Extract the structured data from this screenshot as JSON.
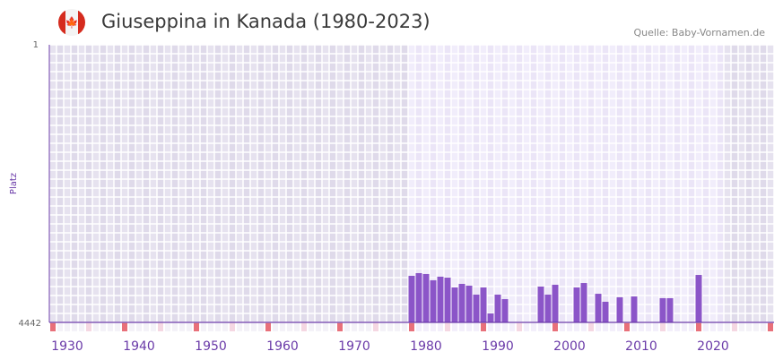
{
  "header": {
    "title": "Giuseppina in Kanada (1980-2023)",
    "source": "Quelle: Baby-Vornamen.de",
    "flag_icon": "canada-flag-icon"
  },
  "colors": {
    "bar": "#8b55c8",
    "axis": "#6a3aa8",
    "bg_dark": "#e4e0ee",
    "bg_light": "#efeaf9",
    "decade_marker": "#e8707a",
    "half_marker": "#f5d7e2"
  },
  "chart_data": {
    "type": "bar",
    "title": "Giuseppina in Kanada (1980-2023)",
    "xlabel": "",
    "ylabel": "Platz",
    "xlim": [
      1928,
      2028
    ],
    "ylim": [
      4442,
      1
    ],
    "y_ticks": [
      "1",
      "4442"
    ],
    "x_ticks": [
      1930,
      1940,
      1950,
      1960,
      1970,
      1980,
      1990,
      2000,
      2010,
      2020
    ],
    "highlight_range": [
      1978,
      2021
    ],
    "points": [
      {
        "year": 1978,
        "rank": 3697
      },
      {
        "year": 1979,
        "rank": 3654
      },
      {
        "year": 1980,
        "rank": 3668
      },
      {
        "year": 1981,
        "rank": 3769
      },
      {
        "year": 1982,
        "rank": 3711
      },
      {
        "year": 1983,
        "rank": 3726
      },
      {
        "year": 1984,
        "rank": 3883
      },
      {
        "year": 1985,
        "rank": 3826
      },
      {
        "year": 1986,
        "rank": 3855
      },
      {
        "year": 1987,
        "rank": 3998
      },
      {
        "year": 1988,
        "rank": 3883
      },
      {
        "year": 1989,
        "rank": 4299
      },
      {
        "year": 1990,
        "rank": 3998
      },
      {
        "year": 1991,
        "rank": 4070
      },
      {
        "year": 1996,
        "rank": 3869
      },
      {
        "year": 1997,
        "rank": 3998
      },
      {
        "year": 1998,
        "rank": 3840
      },
      {
        "year": 2001,
        "rank": 3883
      },
      {
        "year": 2002,
        "rank": 3812
      },
      {
        "year": 2004,
        "rank": 3984
      },
      {
        "year": 2005,
        "rank": 4112
      },
      {
        "year": 2007,
        "rank": 4041
      },
      {
        "year": 2009,
        "rank": 4027
      },
      {
        "year": 2013,
        "rank": 4055
      },
      {
        "year": 2014,
        "rank": 4055
      },
      {
        "year": 2018,
        "rank": 3683
      }
    ]
  }
}
